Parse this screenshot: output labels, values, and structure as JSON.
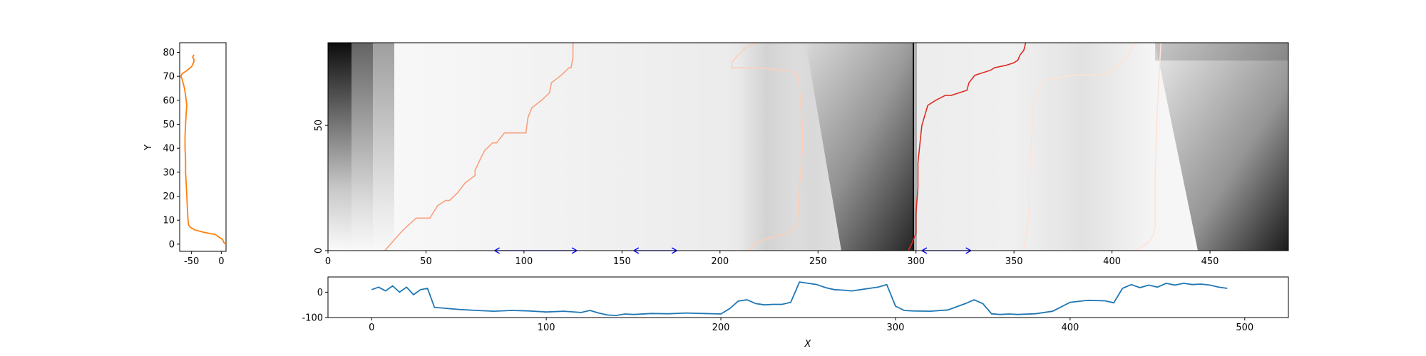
{
  "chart_data": [
    {
      "type": "line",
      "role": "left-profile",
      "xlabel": "",
      "ylabel": "Y",
      "xlim": [
        -70,
        8
      ],
      "ylim": [
        -3,
        84
      ],
      "xticks": [
        -50,
        0
      ],
      "yticks": [
        0,
        10,
        20,
        30,
        40,
        50,
        60,
        70,
        80
      ],
      "color": "#ff7f0e",
      "series": [
        {
          "x": [
            6,
            2,
            -10,
            -30,
            -45,
            -52,
            -55,
            -56,
            -57,
            -58,
            -59,
            -60,
            -60,
            -61,
            -61,
            -60,
            -59,
            -58,
            -60,
            -62,
            -64,
            -66,
            -68,
            -66,
            -60,
            -55,
            -50,
            -48,
            -46,
            -46,
            -48,
            -46
          ],
          "y": [
            0,
            2,
            4,
            5,
            6,
            7,
            8,
            10,
            15,
            20,
            25,
            30,
            35,
            40,
            45,
            50,
            55,
            58,
            62,
            65,
            67,
            69,
            70,
            71,
            72,
            73,
            74,
            75,
            76,
            77,
            78,
            79
          ]
        }
      ]
    },
    {
      "type": "heatmap",
      "role": "main-image",
      "colormap": "gray_r",
      "xlim": [
        0,
        490
      ],
      "ylim": [
        0,
        83
      ],
      "xticks": [
        0,
        50,
        100,
        150,
        200,
        250,
        300,
        350,
        400,
        450
      ],
      "yticks": [
        0,
        50
      ],
      "dark_bands": [
        [
          0,
          12
        ],
        [
          277,
          300
        ],
        [
          475,
          490
        ]
      ],
      "paths": [
        {
          "color": "#f9a07e",
          "x": [
            29,
            38,
            45,
            46,
            52,
            56,
            60,
            62,
            66,
            70,
            75,
            75,
            78,
            80,
            84,
            86,
            90,
            94,
            101,
            102,
            104,
            109,
            113,
            114,
            119,
            123,
            124,
            125,
            125
          ],
          "y": [
            0,
            8,
            13,
            13,
            13,
            18,
            20,
            20,
            23,
            27,
            30,
            32,
            37,
            40,
            43,
            43,
            47,
            47,
            47,
            53,
            57,
            60,
            63,
            67,
            70,
            73,
            73,
            77,
            83
          ]
        },
        {
          "color": "#fdcfb9",
          "x": [
            215,
            218,
            225,
            235,
            239,
            240,
            240,
            241,
            242,
            242,
            240,
            235,
            230,
            220,
            212,
            208,
            206,
            206,
            209,
            213,
            218
          ],
          "y": [
            0,
            3,
            5,
            7,
            10,
            15,
            20,
            30,
            40,
            50,
            70,
            72,
            72,
            73,
            73,
            73,
            73,
            75,
            78,
            81,
            83
          ]
        },
        {
          "color": "#dd2c21",
          "x": [
            296,
            298,
            300,
            300,
            301,
            301,
            303,
            306,
            310,
            315,
            318,
            326,
            327,
            330,
            338,
            340,
            346,
            350,
            352,
            353,
            354,
            355,
            356
          ],
          "y": [
            0,
            3,
            7,
            15,
            25,
            35,
            50,
            58,
            60,
            62,
            62,
            64,
            67,
            70,
            72,
            73,
            74,
            75,
            76,
            78,
            79,
            80,
            83
          ]
        },
        {
          "color": "#fee3d4",
          "x": [
            355,
            356,
            357,
            358,
            358,
            360,
            365,
            380,
            395,
            402,
            408,
            412
          ],
          "y": [
            0,
            5,
            10,
            20,
            30,
            60,
            68,
            70,
            70,
            73,
            78,
            83
          ]
        },
        {
          "color": "#fee3d4",
          "x": [
            412,
            418,
            421,
            422,
            422,
            423,
            424,
            425
          ],
          "y": [
            0,
            3,
            6,
            10,
            30,
            55,
            70,
            83
          ]
        }
      ],
      "arrows": [
        {
          "x0": 85,
          "x1": 127
        },
        {
          "x0": 156,
          "x1": 178
        },
        {
          "x0": 303,
          "x1": 328
        }
      ],
      "arrow_color": "#0000ff"
    },
    {
      "type": "line",
      "role": "bottom-profile",
      "xlabel": "X",
      "ylabel": "",
      "xlim": [
        -25,
        525
      ],
      "ylim": [
        -100,
        60
      ],
      "xticks": [
        0,
        100,
        200,
        300,
        400,
        500
      ],
      "yticks": [
        -100,
        0
      ],
      "color": "#1f77b4",
      "series": [
        {
          "x": [
            0,
            4,
            8,
            12,
            16,
            20,
            24,
            28,
            32,
            36,
            40,
            50,
            60,
            70,
            80,
            90,
            100,
            110,
            120,
            125,
            130,
            135,
            140,
            145,
            150,
            160,
            170,
            180,
            190,
            200,
            205,
            210,
            215,
            220,
            225,
            230,
            235,
            240,
            245,
            250,
            255,
            260,
            265,
            270,
            275,
            280,
            285,
            290,
            295,
            300,
            305,
            310,
            320,
            330,
            340,
            345,
            350,
            355,
            360,
            365,
            370,
            380,
            390,
            400,
            410,
            420,
            425,
            430,
            435,
            440,
            445,
            450,
            455,
            460,
            465,
            470,
            475,
            480,
            485,
            490
          ],
          "y": [
            10,
            20,
            5,
            25,
            0,
            20,
            -10,
            10,
            15,
            -60,
            -62,
            -68,
            -72,
            -75,
            -72,
            -74,
            -78,
            -75,
            -80,
            -72,
            -82,
            -90,
            -92,
            -86,
            -88,
            -84,
            -85,
            -82,
            -84,
            -86,
            -65,
            -35,
            -30,
            -45,
            -50,
            -48,
            -48,
            -40,
            40,
            35,
            30,
            18,
            10,
            8,
            5,
            10,
            15,
            20,
            30,
            -55,
            -72,
            -74,
            -75,
            -70,
            -45,
            -30,
            -45,
            -85,
            -88,
            -86,
            -88,
            -85,
            -75,
            -40,
            -32,
            -34,
            -42,
            15,
            30,
            18,
            28,
            20,
            35,
            28,
            35,
            30,
            32,
            28,
            20,
            15
          ]
        }
      ]
    }
  ]
}
